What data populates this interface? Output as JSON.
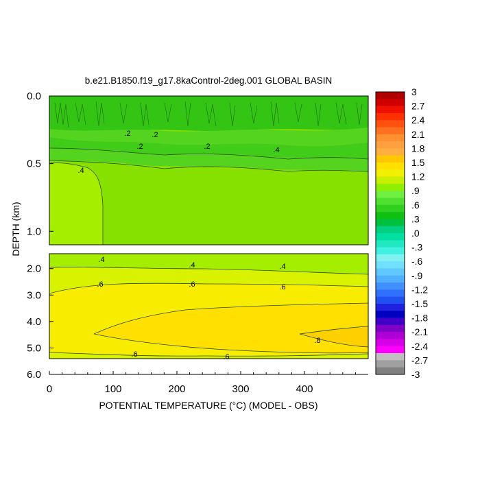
{
  "chart_data": {
    "type": "heatmap",
    "title": "b.e21.B1850.f19_g17.8kaControl-2deg.001 GLOBAL BASIN",
    "xlabel": "POTENTIAL TEMPERATURE (°C) (MODEL - OBS)",
    "ylabel": "DEPTH (km)",
    "xlim": [
      0,
      500
    ],
    "xticks": [
      "0",
      "100",
      "200",
      "300",
      "400"
    ],
    "upper_panel": {
      "ylim": [
        0.0,
        1.1
      ],
      "yticks": [
        "0.0",
        "0.5",
        "1.0"
      ]
    },
    "lower_panel": {
      "ylim": [
        1.1,
        6.0
      ],
      "yticks": [
        "2.0",
        "3.0",
        "4.0",
        "5.0",
        "6.0"
      ]
    },
    "colorbar": {
      "levels": [
        -3,
        -2.85,
        -2.7,
        -2.55,
        -2.4,
        -2.25,
        -2.1,
        -1.95,
        -1.8,
        -1.65,
        -1.5,
        -1.35,
        -1.2,
        -1.05,
        -0.9,
        -0.75,
        -0.6,
        -0.45,
        -0.3,
        -0.15,
        0,
        0.15,
        0.3,
        0.45,
        0.6,
        0.75,
        0.9,
        1.05,
        1.2,
        1.35,
        1.5,
        1.65,
        1.8,
        1.95,
        2.1,
        2.25,
        2.4,
        2.55,
        2.7,
        2.85,
        3
      ],
      "labels": [
        "3",
        "2.7",
        "2.4",
        "2.1",
        "1.8",
        "1.5",
        "1.2",
        ".9",
        ".6",
        ".3",
        ".0",
        "-.3",
        "-.6",
        "-.9",
        "-1.2",
        "-1.5",
        "-1.8",
        "-2.1",
        "-2.4",
        "-2.7",
        "-3"
      ],
      "colors": [
        "#808080",
        "#a0a0a0",
        "#c0c0c0",
        "#ff00ff",
        "#d800e8",
        "#b000d8",
        "#8000c8",
        "#4000c8",
        "#0000c0",
        "#2020e0",
        "#2050f0",
        "#3070ff",
        "#4090ff",
        "#50b0ff",
        "#60c8ff",
        "#70e0ff",
        "#80f0f0",
        "#40f0e0",
        "#20e8c0",
        "#00e0a0",
        "#00d080",
        "#00c040",
        "#10c010",
        "#30d020",
        "#50e030",
        "#70f040",
        "#90f000",
        "#c8f000",
        "#f0f000",
        "#ffe000",
        "#ffc800",
        "#ffb040",
        "#ffa040",
        "#ff9030",
        "#ff7020",
        "#ff5010",
        "#ff3000",
        "#f01000",
        "#d00000",
        "#b00000"
      ]
    },
    "contours": {
      "upper_labels": [
        ".2",
        ".2",
        ".2",
        ".2",
        ".4",
        ".4"
      ],
      "lower_labels": [
        ".4",
        ".4",
        ".4",
        ".6",
        ".6",
        ".6",
        ".8",
        ".6",
        ".6"
      ]
    },
    "grid": false,
    "legend": "right (colorbar)"
  }
}
